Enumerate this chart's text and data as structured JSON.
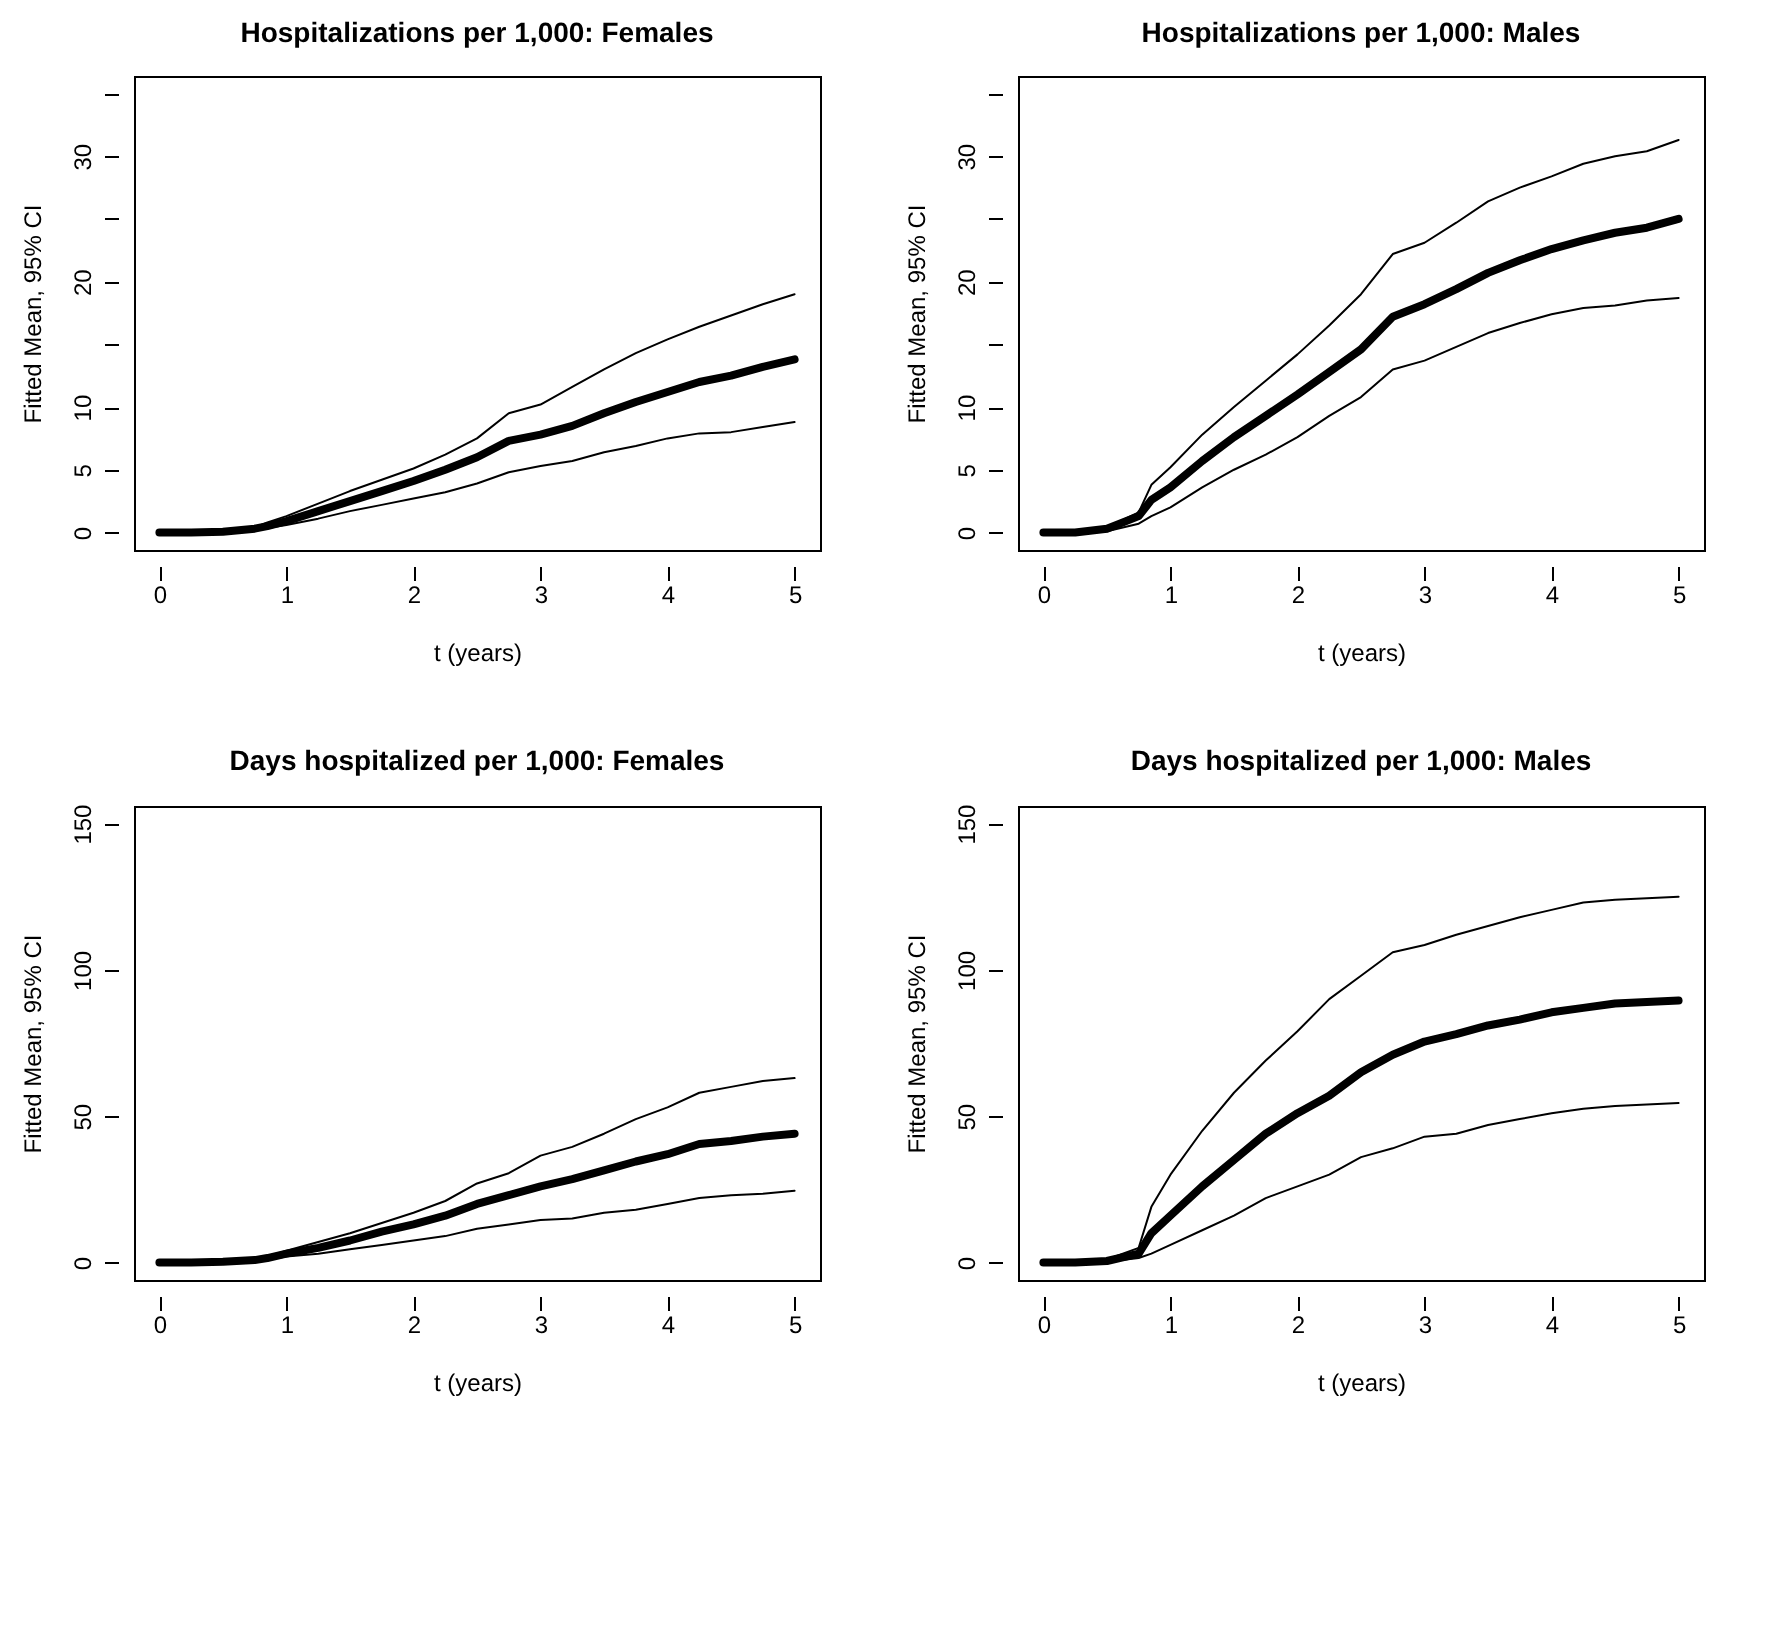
{
  "chart_data": [
    {
      "type": "line",
      "title": "Hospitalizations per 1,000: Females",
      "xlabel": "t (years)",
      "ylabel": "Fitted Mean, 95% CI",
      "x": [
        0,
        0.25,
        0.5,
        0.75,
        0.85,
        1,
        1.25,
        1.5,
        1.75,
        2,
        2.25,
        2.5,
        2.75,
        3,
        3.25,
        3.5,
        3.75,
        4,
        4.25,
        4.5,
        4.75,
        5
      ],
      "xlim": [
        -0.2,
        5.2
      ],
      "xticks": [
        0,
        1,
        2,
        3,
        4,
        5
      ],
      "ylim": [
        -1.4,
        36.4
      ],
      "yticks": [
        0,
        5,
        10,
        {
          "value": 15,
          "label": null
        },
        20,
        {
          "value": 25,
          "label": null
        },
        30,
        {
          "value": 35,
          "label": null
        }
      ],
      "grid": false,
      "legend": false,
      "marker": "none",
      "line_style": "solid",
      "series": [
        {
          "color": "#000000",
          "values": [
            0,
            0,
            0.05,
            0.3,
            0.5,
            0.9,
            1.7,
            2.5,
            3.3,
            4.1,
            5.0,
            6.0,
            7.3,
            7.8,
            8.5,
            9.5,
            10.4,
            11.2,
            12.0,
            12.5,
            13.2,
            13.8
          ]
        },
        {
          "color": "#000000",
          "values": [
            0,
            0,
            0.1,
            0.4,
            0.8,
            1.3,
            2.3,
            3.3,
            4.2,
            5.1,
            6.2,
            7.5,
            9.5,
            10.2,
            11.6,
            13.0,
            14.3,
            15.4,
            16.4,
            17.3,
            18.2,
            19.0
          ]
        },
        {
          "color": "#000000",
          "values": [
            0,
            0,
            0,
            0.2,
            0.35,
            0.6,
            1.1,
            1.7,
            2.2,
            2.7,
            3.2,
            3.9,
            4.8,
            5.3,
            5.7,
            6.4,
            6.9,
            7.5,
            7.9,
            8.0,
            8.4,
            8.8
          ]
        }
      ]
    },
    {
      "type": "line",
      "title": "Hospitalizations per 1,000: Males",
      "xlabel": "t (years)",
      "ylabel": "Fitted Mean, 95% CI",
      "x": [
        0,
        0.25,
        0.5,
        0.75,
        0.85,
        1,
        1.25,
        1.5,
        1.75,
        2,
        2.25,
        2.5,
        2.75,
        3,
        3.25,
        3.5,
        3.75,
        4,
        4.25,
        4.5,
        4.75,
        5
      ],
      "xlim": [
        -0.2,
        5.2
      ],
      "xticks": [
        0,
        1,
        2,
        3,
        4,
        5
      ],
      "ylim": [
        -1.4,
        36.4
      ],
      "yticks": [
        0,
        5,
        10,
        {
          "value": 15,
          "label": null
        },
        20,
        {
          "value": 25,
          "label": null
        },
        30,
        {
          "value": 35,
          "label": null
        }
      ],
      "grid": false,
      "legend": false,
      "marker": "none",
      "line_style": "solid",
      "series": [
        {
          "color": "#000000",
          "values": [
            0,
            0,
            0.3,
            1.3,
            2.6,
            3.6,
            5.7,
            7.6,
            9.3,
            11.0,
            12.8,
            14.6,
            17.2,
            18.2,
            19.4,
            20.7,
            21.7,
            22.6,
            23.3,
            23.9,
            24.3,
            25.0
          ]
        },
        {
          "color": "#000000",
          "values": [
            0,
            0,
            0.4,
            1.6,
            3.8,
            5.2,
            7.8,
            10.0,
            12.1,
            14.2,
            16.5,
            19.0,
            22.2,
            23.1,
            24.7,
            26.4,
            27.5,
            28.4,
            29.4,
            30.0,
            30.4,
            31.3
          ]
        },
        {
          "color": "#000000",
          "values": [
            0,
            0,
            0.1,
            0.7,
            1.3,
            2.0,
            3.6,
            5.0,
            6.2,
            7.6,
            9.3,
            10.8,
            13.0,
            13.7,
            14.8,
            15.9,
            16.7,
            17.4,
            17.9,
            18.1,
            18.5,
            18.7
          ]
        }
      ]
    },
    {
      "type": "line",
      "title": "Days hospitalized per 1,000: Females",
      "xlabel": "t (years)",
      "ylabel": "Fitted Mean, 95% CI",
      "x": [
        0,
        0.25,
        0.5,
        0.75,
        0.85,
        1,
        1.25,
        1.5,
        1.75,
        2,
        2.25,
        2.5,
        2.75,
        3,
        3.25,
        3.5,
        3.75,
        4,
        4.25,
        4.5,
        4.75,
        5
      ],
      "xlim": [
        -0.2,
        5.2
      ],
      "xticks": [
        0,
        1,
        2,
        3,
        4,
        5
      ],
      "ylim": [
        -6,
        156
      ],
      "yticks": [
        0,
        50,
        100,
        150
      ],
      "grid": false,
      "legend": false,
      "marker": "none",
      "line_style": "solid",
      "series": [
        {
          "color": "#000000",
          "values": [
            0,
            0,
            0.2,
            0.8,
            1.5,
            3,
            5,
            7.5,
            10.5,
            13,
            16,
            20,
            23,
            26,
            28.5,
            31.5,
            34.5,
            37,
            40.5,
            41.5,
            43,
            44
          ]
        },
        {
          "color": "#000000",
          "values": [
            0,
            0,
            0.3,
            1,
            2,
            4,
            7,
            10,
            13.5,
            17,
            21,
            27,
            30.5,
            36.5,
            39.5,
            44,
            49,
            53,
            58,
            60,
            62,
            63
          ]
        },
        {
          "color": "#000000",
          "values": [
            0,
            0,
            0.1,
            0.5,
            1,
            2,
            3,
            4.5,
            6,
            7.5,
            9,
            11.5,
            13,
            14.5,
            15,
            17,
            18,
            20,
            22,
            23,
            23.5,
            24.5
          ]
        }
      ]
    },
    {
      "type": "line",
      "title": "Days hospitalized per 1,000: Males",
      "xlabel": "t (years)",
      "ylabel": "Fitted Mean, 95% CI",
      "x": [
        0,
        0.25,
        0.5,
        0.75,
        0.85,
        1,
        1.25,
        1.5,
        1.75,
        2,
        2.25,
        2.5,
        2.75,
        3,
        3.25,
        3.5,
        3.75,
        4,
        4.25,
        4.5,
        4.75,
        5
      ],
      "xlim": [
        -0.2,
        5.2
      ],
      "xticks": [
        0,
        1,
        2,
        3,
        4,
        5
      ],
      "ylim": [
        -6,
        156
      ],
      "yticks": [
        0,
        50,
        100,
        150
      ],
      "grid": false,
      "legend": false,
      "marker": "none",
      "line_style": "solid",
      "series": [
        {
          "color": "#000000",
          "values": [
            0,
            0,
            0.5,
            3,
            10,
            16,
            26,
            35,
            44,
            51,
            57,
            65,
            71,
            75.5,
            78,
            81,
            83,
            85.5,
            87,
            88.5,
            89,
            89.5
          ]
        },
        {
          "color": "#000000",
          "values": [
            0,
            0,
            1,
            5,
            19,
            30,
            45,
            58,
            69,
            79,
            90,
            98,
            106,
            108.5,
            112,
            115,
            118,
            120.5,
            123,
            124,
            124.5,
            125
          ]
        },
        {
          "color": "#000000",
          "values": [
            0,
            0,
            0.2,
            1.5,
            3,
            6,
            11,
            16,
            22,
            26,
            30,
            36,
            39,
            43,
            44,
            47,
            49,
            51,
            52.5,
            53.5,
            54,
            54.5
          ]
        }
      ]
    }
  ]
}
